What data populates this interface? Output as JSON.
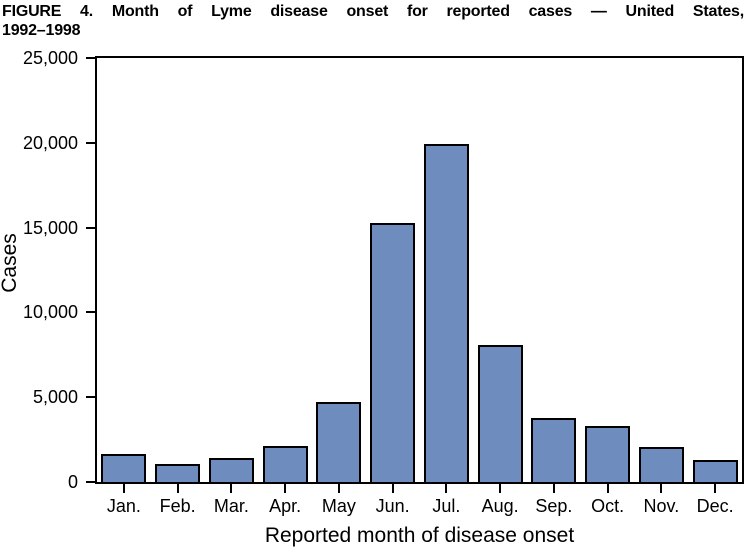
{
  "figure": {
    "title_line1": "FIGURE 4. Month of Lyme disease onset for reported cases — United States,",
    "title_line2": "1992–1998"
  },
  "chart_data": {
    "type": "bar",
    "title": "FIGURE 4. Month of Lyme disease onset for reported cases — United States, 1992–1998",
    "xlabel": "Reported month of disease onset",
    "ylabel": "Cases",
    "categories": [
      "Jan.",
      "Feb.",
      "Mar.",
      "Apr.",
      "May",
      "Jun.",
      "Jul.",
      "Aug.",
      "Sep.",
      "Oct.",
      "Nov.",
      "Dec."
    ],
    "values": [
      1650,
      1050,
      1400,
      2100,
      4700,
      15250,
      19900,
      8100,
      3750,
      3300,
      2050,
      1300
    ],
    "ylim": [
      0,
      25000
    ],
    "yticks": [
      0,
      5000,
      10000,
      15000,
      20000,
      25000
    ],
    "ytick_labels": [
      "0",
      "5,000",
      "10,000",
      "15,000",
      "20,000",
      "25,000"
    ],
    "grid": false,
    "legend": "none",
    "layout": {
      "bar_slot_fraction": 0.84
    },
    "colors": {
      "bar_fill": "#6E8CBD",
      "bar_border": "#000000",
      "axis": "#000000",
      "text": "#000000",
      "background": "#FFFFFF"
    }
  }
}
